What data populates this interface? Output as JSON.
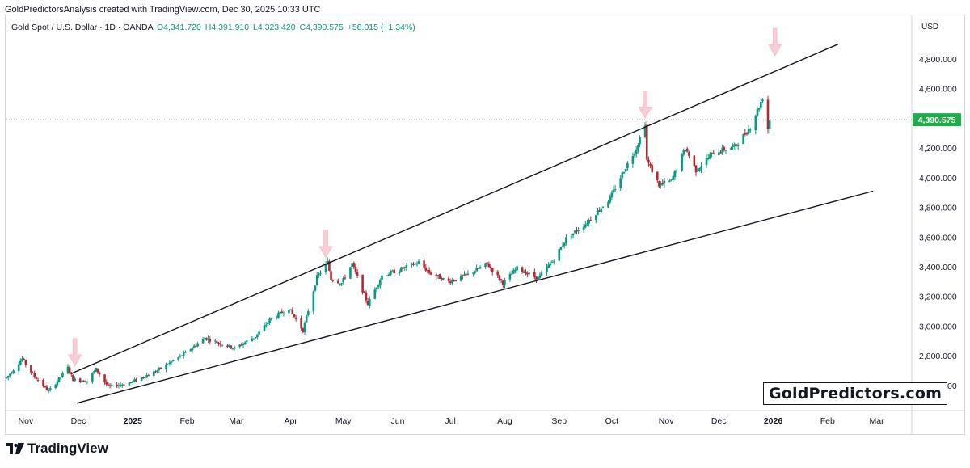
{
  "header": {
    "title": "GoldPredictorsAnalysis created with TradingView.com, Dec 30, 2025 10:33 UTC"
  },
  "symbol": {
    "name": "Gold Spot / U.S. Dollar · 1D · OANDA",
    "open": "O4,341.720",
    "high": "H4,391.910",
    "low": "L4,323.420",
    "close": "C4,390.575",
    "change": "+58.015 (+1.34%)"
  },
  "price_axis": {
    "currency": "USD",
    "last_price_label": "4,390.575"
  },
  "watermark": "GoldPredictors.com",
  "footer_logo": "TradingView",
  "colors": {
    "up": "#089981",
    "down": "#b22833",
    "last_price": "#22ab4a",
    "arrow": "#f8c8d4",
    "line": "#131722"
  },
  "chart_data": {
    "type": "candlestick",
    "title": "",
    "xlabel": "",
    "ylabel": "",
    "ylim": [
      2430,
      4980
    ],
    "y_ticks": [
      2600,
      2800,
      3000,
      3200,
      3400,
      3600,
      3800,
      4000,
      4200,
      4400,
      4600,
      4800
    ],
    "y_tick_labels": [
      "2,600.000",
      "2,800.000",
      "3,000.000",
      "3,200.000",
      "3,400.000",
      "3,600.000",
      "3,800.000",
      "4,000.000",
      "4,200.000",
      "4,400.000",
      "4,600.000",
      "4,800.000"
    ],
    "x_range": [
      "2024-10-21",
      "2026-03-21"
    ],
    "x_ticks": [
      "2024-11-01",
      "2024-12-01",
      "2025-01-01",
      "2025-02-01",
      "2025-03-01",
      "2025-04-01",
      "2025-05-01",
      "2025-06-01",
      "2025-07-01",
      "2025-08-01",
      "2025-09-01",
      "2025-10-01",
      "2025-11-01",
      "2025-12-01",
      "2026-01-01",
      "2026-02-01",
      "2026-03-01"
    ],
    "x_tick_labels": [
      "Nov",
      "Dec",
      "2025",
      "Feb",
      "Mar",
      "Apr",
      "May",
      "Jun",
      "Jul",
      "Aug",
      "Sep",
      "Oct",
      "Nov",
      "Dec",
      "2026",
      "Feb",
      "Mar"
    ],
    "price_path": [
      [
        "2024-10-21",
        2650
      ],
      [
        "2024-10-30",
        2780
      ],
      [
        "2024-11-01",
        2740
      ],
      [
        "2024-11-06",
        2660
      ],
      [
        "2024-11-14",
        2560
      ],
      [
        "2024-11-19",
        2630
      ],
      [
        "2024-11-25",
        2720
      ],
      [
        "2024-11-28",
        2640
      ],
      [
        "2024-12-06",
        2630
      ],
      [
        "2024-12-11",
        2710
      ],
      [
        "2024-12-18",
        2590
      ],
      [
        "2024-12-31",
        2620
      ],
      [
        "2025-01-15",
        2700
      ],
      [
        "2025-01-30",
        2810
      ],
      [
        "2025-02-11",
        2920
      ],
      [
        "2025-02-28",
        2850
      ],
      [
        "2025-03-12",
        2930
      ],
      [
        "2025-03-20",
        3040
      ],
      [
        "2025-03-31",
        3120
      ],
      [
        "2025-04-08",
        2970
      ],
      [
        "2025-04-16",
        3330
      ],
      [
        "2025-04-22",
        3430
      ],
      [
        "2025-04-24",
        3320
      ],
      [
        "2025-04-30",
        3290
      ],
      [
        "2025-05-06",
        3420
      ],
      [
        "2025-05-15",
        3150
      ],
      [
        "2025-05-23",
        3340
      ],
      [
        "2025-06-02",
        3380
      ],
      [
        "2025-06-13",
        3430
      ],
      [
        "2025-06-19",
        3360
      ],
      [
        "2025-06-30",
        3300
      ],
      [
        "2025-07-10",
        3340
      ],
      [
        "2025-07-22",
        3420
      ],
      [
        "2025-07-31",
        3290
      ],
      [
        "2025-08-08",
        3390
      ],
      [
        "2025-08-20",
        3320
      ],
      [
        "2025-08-29",
        3450
      ],
      [
        "2025-09-05",
        3590
      ],
      [
        "2025-09-16",
        3690
      ],
      [
        "2025-09-30",
        3860
      ],
      [
        "2025-10-08",
        4050
      ],
      [
        "2025-10-15",
        4200
      ],
      [
        "2025-10-20",
        4370
      ],
      [
        "2025-10-21",
        4120
      ],
      [
        "2025-10-28",
        3950
      ],
      [
        "2025-11-04",
        3980
      ],
      [
        "2025-11-12",
        4200
      ],
      [
        "2025-11-18",
        4050
      ],
      [
        "2025-11-28",
        4170
      ],
      [
        "2025-12-10",
        4210
      ],
      [
        "2025-12-19",
        4340
      ],
      [
        "2025-12-26",
        4540
      ],
      [
        "2025-12-29",
        4330
      ],
      [
        "2025-12-30",
        4390
      ]
    ],
    "last_price": 4390.575,
    "trendlines": [
      {
        "name": "upper",
        "from": [
          "2024-11-27",
          2680
        ],
        "to": [
          "2026-02-07",
          4900
        ]
      },
      {
        "name": "lower",
        "from": [
          "2024-11-30",
          2480
        ],
        "to": [
          "2026-02-27",
          3910
        ]
      }
    ],
    "arrows": [
      {
        "date": "2024-11-29",
        "price": 2720
      },
      {
        "date": "2025-04-21",
        "price": 3450
      },
      {
        "date": "2025-10-20",
        "price": 4390
      },
      {
        "date": "2026-01-02",
        "price": 4810
      }
    ],
    "grid": false
  }
}
